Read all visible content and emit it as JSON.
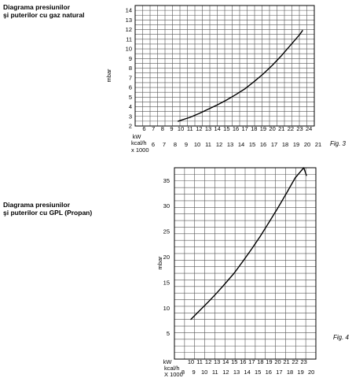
{
  "chart_data": [
    {
      "type": "line",
      "title_lines": [
        "Diagrama presiunilor",
        "şi puterilor cu gaz natural"
      ],
      "figure_label": "Fig. 3",
      "ylabel": "mbar",
      "ylim": [
        2,
        14.5
      ],
      "y_ticks": [
        2,
        3,
        4,
        5,
        6,
        7,
        8,
        9,
        10,
        11,
        12,
        13,
        14
      ],
      "x_primary": {
        "label": "kW",
        "ticks": [
          6,
          7,
          8,
          9,
          10,
          11,
          12,
          13,
          14,
          15,
          16,
          17,
          18,
          19,
          20,
          21,
          22,
          23,
          24
        ]
      },
      "x_secondary": {
        "label_lines": [
          "kcal/h",
          "x 1000"
        ],
        "ticks": [
          6,
          7,
          8,
          9,
          10,
          11,
          12,
          13,
          14,
          15,
          16,
          17,
          18,
          19,
          20,
          21
        ]
      },
      "series": [
        {
          "x": [
            9.7,
            11,
            12,
            13,
            14,
            15,
            16,
            17,
            18,
            19,
            20,
            21,
            22,
            23,
            23.3
          ],
          "y": [
            2.5,
            2.9,
            3.3,
            3.75,
            4.2,
            4.7,
            5.25,
            5.85,
            6.6,
            7.4,
            8.3,
            9.3,
            10.4,
            11.5,
            11.9
          ]
        }
      ]
    },
    {
      "type": "line",
      "title_lines": [
        "Diagrama presiunilor",
        "şi puterilor cu GPL (Propan)"
      ],
      "figure_label": "Fig. 4",
      "ylabel": "mbar",
      "ylim": [
        0,
        37.5
      ],
      "y_ticks": [
        5,
        10,
        15,
        20,
        25,
        30,
        35
      ],
      "x_primary": {
        "label": "kW",
        "ticks": [
          10,
          11,
          12,
          13,
          14,
          15,
          16,
          17,
          18,
          19,
          20,
          21,
          22,
          23
        ]
      },
      "x_secondary": {
        "label_lines": [
          "kcal/h",
          "X 1000"
        ],
        "ticks": [
          8,
          9,
          10,
          11,
          12,
          13,
          14,
          15,
          16,
          17,
          18,
          19,
          20
        ]
      },
      "series": [
        {
          "x": [
            10,
            11,
            12,
            13,
            14,
            15,
            16,
            17,
            18,
            19,
            20,
            21,
            22,
            23,
            23.3
          ],
          "y": [
            7.8,
            9.5,
            11.2,
            13,
            14.9,
            16.9,
            19.2,
            21.6,
            24.1,
            26.8,
            29.6,
            32.5,
            35.5,
            38.6,
            36
          ]
        }
      ]
    }
  ]
}
